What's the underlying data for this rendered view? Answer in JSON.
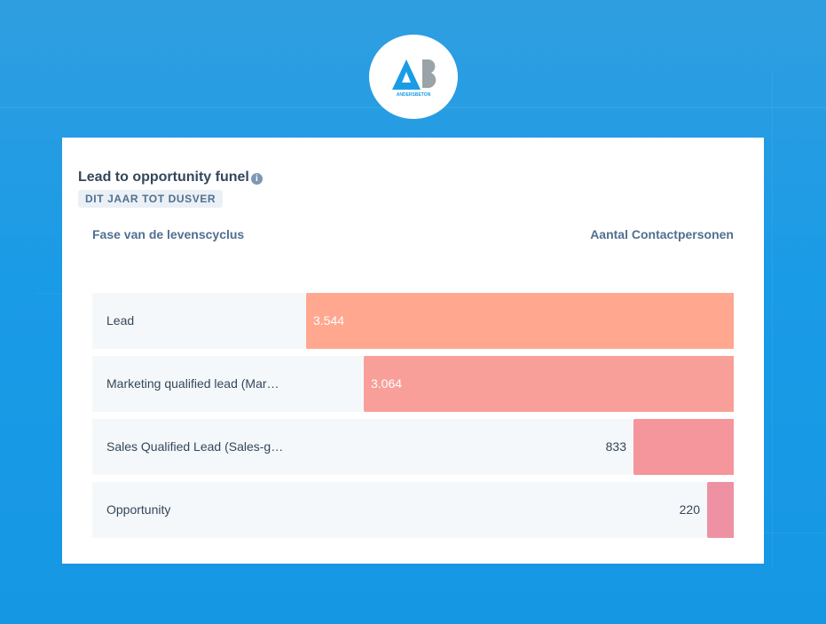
{
  "card": {
    "title": "Lead to opportunity funel",
    "badge": "DIT JAAR TOT DUSVER",
    "column_left": "Fase van de levenscyclus",
    "column_right": "Aantal Contactpersonen"
  },
  "logo": {
    "text": "ANDERSBETON",
    "colors": {
      "triangle": "#1a9be6",
      "b": "#9aa3a8"
    }
  },
  "chart_data": {
    "type": "bar",
    "orientation": "horizontal",
    "categories": [
      "Lead",
      "Marketing qualified lead (Mar…",
      "Sales Qualified Lead (Sales-g…",
      "Opportunity"
    ],
    "values": [
      3544,
      3064,
      833,
      220
    ],
    "value_labels": [
      "3.544",
      "3.064",
      "833",
      "220"
    ],
    "colors": [
      "#ffa78f",
      "#f99f99",
      "#f5959c",
      "#ee91a3"
    ],
    "title": "Lead to opportunity funel",
    "xlabel": "Aantal Contactpersonen",
    "ylabel": "Fase van de levenscyclus",
    "xlim": [
      0,
      3544
    ]
  }
}
